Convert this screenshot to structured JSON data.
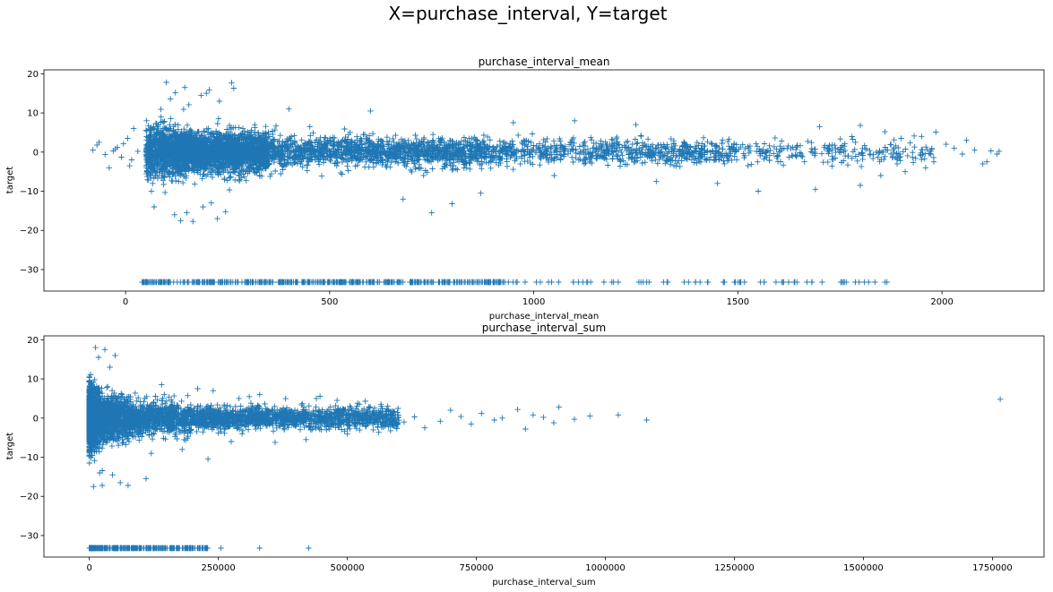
{
  "figure": {
    "suptitle": "X=purchase_interval, Y=target",
    "marker_color": "#1f77b4"
  },
  "chart_data": [
    {
      "type": "scatter",
      "title": "purchase_interval_mean",
      "xlabel": "purchase_interval_mean",
      "ylabel": "target",
      "marker": "+",
      "xlim": [
        -200,
        2250
      ],
      "ylim": [
        -35.5,
        21
      ],
      "xticks": [
        0,
        500,
        1000,
        1500,
        2000
      ],
      "yticks": [
        -30,
        -20,
        -10,
        0,
        10,
        20
      ],
      "grid": false,
      "outlier_band": {
        "y": -33.22,
        "x_range": [
          40,
          1880
        ]
      },
      "points": [
        [
          -80,
          0.5
        ],
        [
          -70,
          1.8
        ],
        [
          -65,
          2.5
        ],
        [
          -50,
          -0.6
        ],
        [
          -30,
          0.3
        ],
        [
          -20,
          1.2
        ],
        [
          -10,
          -1.3
        ],
        [
          5,
          3.5
        ],
        [
          15,
          -2.0
        ],
        [
          -40,
          -4.0
        ],
        [
          20,
          6.0
        ],
        [
          -25,
          0.8
        ],
        [
          10,
          -3.5
        ],
        [
          30,
          0.2
        ],
        [
          -5,
          2.1
        ],
        [
          100,
          17.8
        ],
        [
          122,
          15.2
        ],
        [
          145,
          16.5
        ],
        [
          185,
          14.5
        ],
        [
          198,
          15.0
        ],
        [
          260,
          17.7
        ],
        [
          265,
          16.3
        ],
        [
          205,
          15.9
        ],
        [
          110,
          13.6
        ],
        [
          155,
          12.1
        ],
        [
          230,
          13.0
        ],
        [
          135,
          -17.5
        ],
        [
          150,
          -15.5
        ],
        [
          165,
          -17.7
        ],
        [
          120,
          -16.0
        ],
        [
          245,
          -15.2
        ],
        [
          190,
          -14.0
        ],
        [
          210,
          -13.0
        ],
        [
          225,
          -17.0
        ],
        [
          70,
          -14.0
        ],
        [
          750,
          -15.5
        ],
        [
          800,
          -13.2
        ],
        [
          680,
          -12.0
        ],
        [
          870,
          -10.5
        ],
        [
          1300,
          -7.5
        ],
        [
          1450,
          -8.0
        ],
        [
          1550,
          -10.0
        ],
        [
          1690,
          -9.5
        ],
        [
          1800,
          -8.5
        ],
        [
          1850,
          -6.0
        ],
        [
          1700,
          6.5
        ],
        [
          1800,
          6.8
        ],
        [
          1860,
          5.2
        ],
        [
          1900,
          3.5
        ],
        [
          1950,
          4.0
        ],
        [
          1985,
          5.1
        ],
        [
          2010,
          2.0
        ],
        [
          2030,
          1.0
        ],
        [
          2050,
          -0.5
        ],
        [
          2060,
          3.0
        ],
        [
          2080,
          0.5
        ],
        [
          2100,
          -3.0
        ],
        [
          2110,
          -2.5
        ],
        [
          2120,
          0.3
        ],
        [
          2135,
          -0.5
        ],
        [
          2140,
          0.2
        ],
        [
          1980,
          -2.5
        ],
        [
          1960,
          -4.0
        ],
        [
          1910,
          -5.0
        ],
        [
          1890,
          -3.0
        ],
        [
          1100,
          8.0
        ],
        [
          1250,
          7.0
        ],
        [
          1050,
          -6.0
        ],
        [
          950,
          7.5
        ],
        [
          600,
          10.5
        ],
        [
          400,
          11.0
        ]
      ]
    },
    {
      "type": "scatter",
      "title": "purchase_interval_sum",
      "xlabel": "purchase_interval_sum",
      "ylabel": "target",
      "marker": "+",
      "xlim": [
        -88000,
        1850000
      ],
      "ylim": [
        -35.5,
        21
      ],
      "xticks": [
        0,
        250000,
        500000,
        750000,
        1000000,
        1250000,
        1500000,
        1750000
      ],
      "yticks": [
        -30,
        -20,
        -10,
        0,
        10,
        20
      ],
      "grid": false,
      "outlier_band": {
        "y": -33.22,
        "x_range": [
          0,
          230000
        ]
      },
      "points": [
        [
          1765000,
          4.8
        ],
        [
          1080000,
          -0.5
        ],
        [
          1025000,
          0.8
        ],
        [
          970000,
          0.5
        ],
        [
          940000,
          -0.3
        ],
        [
          910000,
          2.8
        ],
        [
          900000,
          -1.2
        ],
        [
          880000,
          0.2
        ],
        [
          860000,
          0.8
        ],
        [
          845000,
          -2.8
        ],
        [
          830000,
          2.2
        ],
        [
          800000,
          0.0
        ],
        [
          785000,
          -0.5
        ],
        [
          760000,
          1.2
        ],
        [
          740000,
          -1.5
        ],
        [
          720000,
          0.4
        ],
        [
          700000,
          2.0
        ],
        [
          680000,
          -0.8
        ],
        [
          650000,
          -2.5
        ],
        [
          630000,
          0.3
        ],
        [
          610000,
          -1.0
        ],
        [
          590000,
          1.5
        ],
        [
          12000,
          18.0
        ],
        [
          30000,
          17.5
        ],
        [
          50000,
          16.0
        ],
        [
          18000,
          15.5
        ],
        [
          40000,
          13.0
        ],
        [
          8000,
          -17.5
        ],
        [
          25000,
          -17.2
        ],
        [
          45000,
          -14.5
        ],
        [
          60000,
          -16.5
        ],
        [
          75000,
          -17.2
        ],
        [
          110000,
          -15.5
        ],
        [
          20000,
          -14.0
        ],
        [
          230000,
          -10.5
        ],
        [
          360000,
          -6.2
        ],
        [
          330000,
          6.0
        ],
        [
          240000,
          7.0
        ],
        [
          210000,
          7.5
        ],
        [
          290000,
          5.0
        ],
        [
          420000,
          -5.5
        ],
        [
          480000,
          4.5
        ],
        [
          520000,
          3.8
        ],
        [
          500000,
          -4.0
        ],
        [
          550000,
          -3.0
        ],
        [
          440000,
          5.0
        ],
        [
          310000,
          5.5
        ],
        [
          275000,
          -6.0
        ],
        [
          180000,
          -8.0
        ],
        [
          140000,
          8.5
        ],
        [
          120000,
          -9.0
        ]
      ],
      "extra_outliers": [
        [
          255000,
          -33.22
        ],
        [
          330000,
          -33.22
        ],
        [
          425000,
          -33.22
        ]
      ]
    }
  ]
}
